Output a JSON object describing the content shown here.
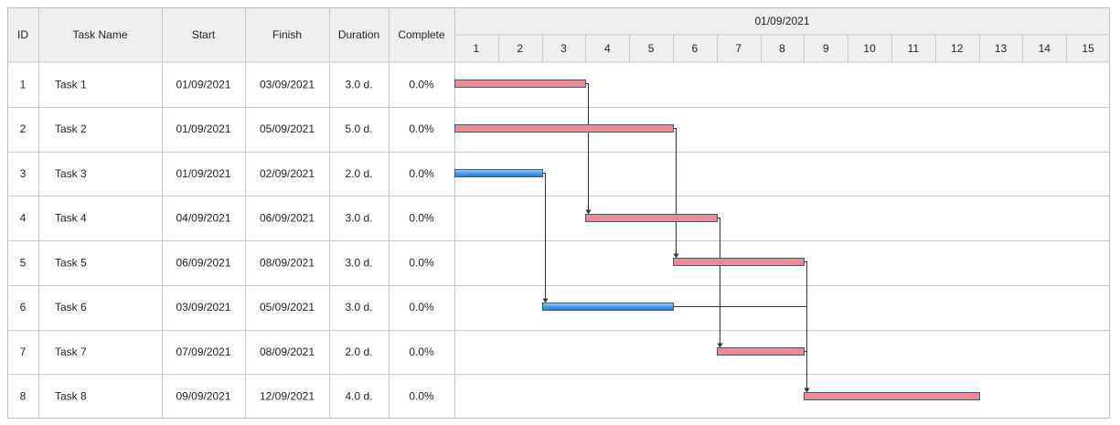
{
  "chart_data": {
    "type": "gantt",
    "header": {
      "columns": [
        "ID",
        "Task Name",
        "Start",
        "Finish",
        "Duration",
        "Complete"
      ],
      "timeline_title": "01/09/2021",
      "days": [
        "1",
        "2",
        "3",
        "4",
        "5",
        "6",
        "7",
        "8",
        "9",
        "10",
        "11",
        "12",
        "13",
        "14",
        "15"
      ]
    },
    "tasks": [
      {
        "id": "1",
        "name": "Task 1",
        "start": "01/09/2021",
        "finish": "03/09/2021",
        "duration": "3.0 d.",
        "complete": "0.0%",
        "start_day": 1,
        "end_day": 3,
        "color": "#f08a8e",
        "style": "red",
        "dependency": {
          "from": "Task 1",
          "to": "Task 4"
        }
      },
      {
        "id": "2",
        "name": "Task 2",
        "start": "01/09/2021",
        "finish": "05/09/2021",
        "duration": "5.0 d.",
        "complete": "0.0%",
        "start_day": 1,
        "end_day": 5,
        "color": "#f08a8e",
        "style": "red",
        "dependency": {
          "from": "Task 2",
          "to": "Task 5"
        }
      },
      {
        "id": "3",
        "name": "Task 3",
        "start": "01/09/2021",
        "finish": "02/09/2021",
        "duration": "2.0 d.",
        "complete": "0.0%",
        "start_day": 1,
        "end_day": 2,
        "color": "#4a9be8",
        "style": "blue",
        "dependency": {
          "from": "Task 3",
          "to": "Task 6"
        }
      },
      {
        "id": "4",
        "name": "Task 4",
        "start": "04/09/2021",
        "finish": "06/09/2021",
        "duration": "3.0 d.",
        "complete": "0.0%",
        "start_day": 4,
        "end_day": 6,
        "color": "#f08a8e",
        "style": "red",
        "dependency": {
          "from": "Task 4",
          "to": "Task 7"
        }
      },
      {
        "id": "5",
        "name": "Task 5",
        "start": "06/09/2021",
        "finish": "08/09/2021",
        "duration": "3.0 d.",
        "complete": "0.0%",
        "start_day": 6,
        "end_day": 8,
        "color": "#f08a8e",
        "style": "red",
        "dependency": {
          "from": "Task 5",
          "to": "Task 8"
        }
      },
      {
        "id": "6",
        "name": "Task 6",
        "start": "03/09/2021",
        "finish": "05/09/2021",
        "duration": "3.0 d.",
        "complete": "0.0%",
        "start_day": 3,
        "end_day": 5,
        "color": "#4a9be8",
        "style": "blue",
        "dependency": {
          "from": "Task 6",
          "to": "Task 8"
        }
      },
      {
        "id": "7",
        "name": "Task 7",
        "start": "07/09/2021",
        "finish": "08/09/2021",
        "duration": "2.0 d.",
        "complete": "0.0%",
        "start_day": 7,
        "end_day": 8,
        "color": "#f08a8e",
        "style": "red",
        "dependency": {
          "from": "Task 7",
          "to": "Task 8"
        }
      },
      {
        "id": "8",
        "name": "Task 8",
        "start": "09/09/2021",
        "finish": "12/09/2021",
        "duration": "4.0 d.",
        "complete": "0.0%",
        "start_day": 9,
        "end_day": 12,
        "color": "#f08a8e",
        "style": "red"
      }
    ],
    "colors": {
      "critical": "#f08a8e",
      "normal": "#4a9be8",
      "border": "#2d5d95",
      "link": "#333333",
      "header_bg": "#efefef",
      "grid": "#c8c8c8"
    }
  }
}
